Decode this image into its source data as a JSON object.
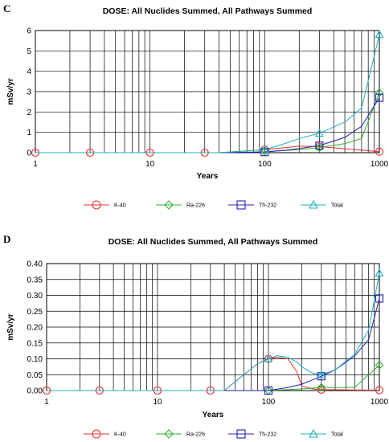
{
  "chart_data": [
    {
      "panel_letter": "C",
      "type": "line",
      "title": "DOSE: All Nuclides Summed, All Pathways Summed",
      "xlabel": "Years",
      "ylabel": "mSv/yr",
      "xscale": "log",
      "xlim": [
        1,
        1000
      ],
      "ylim": [
        0,
        6
      ],
      "x_ticks": [
        1,
        10,
        100,
        1000
      ],
      "x_tick_labels": [
        "1",
        "10",
        "100",
        "1000"
      ],
      "y_ticks": [
        0,
        1,
        2,
        3,
        4,
        5,
        6
      ],
      "y_tick_labels": [
        "0",
        "1",
        "2",
        "3",
        "4",
        "5",
        "6"
      ],
      "grid": true,
      "legend_position": "bottom",
      "series": [
        {
          "name": "K-40",
          "color": "#e03030",
          "marker": "circle",
          "x": [
            1,
            3,
            10,
            30,
            40,
            100,
            150,
            200,
            300,
            1000
          ],
          "y": [
            0,
            0,
            0,
            0,
            0,
            0.15,
            0.25,
            0.32,
            0.3,
            0.05
          ],
          "marker_x": [
            1,
            3,
            10,
            30,
            100,
            300,
            1000
          ]
        },
        {
          "name": "Ra-226",
          "color": "#30b030",
          "marker": "diamond",
          "x": [
            1,
            40,
            100,
            200,
            300,
            500,
            700,
            1000
          ],
          "y": [
            0,
            0,
            0.05,
            0.15,
            0.25,
            0.45,
            0.7,
            2.95
          ],
          "marker_x": [
            100,
            300,
            1000
          ]
        },
        {
          "name": "Th-232",
          "color": "#2020b0",
          "marker": "square",
          "x": [
            1,
            40,
            100,
            150,
            200,
            300,
            500,
            700,
            1000
          ],
          "y": [
            0,
            0,
            0.03,
            0.12,
            0.2,
            0.35,
            0.75,
            1.3,
            2.7
          ],
          "marker_x": [
            100,
            300,
            1000
          ]
        },
        {
          "name": "Total",
          "color": "#20b0c0",
          "marker": "triangle",
          "x": [
            1,
            40,
            100,
            150,
            200,
            300,
            500,
            700,
            1000
          ],
          "y": [
            0,
            0,
            0.15,
            0.45,
            0.7,
            0.95,
            1.5,
            2.2,
            5.8
          ],
          "marker_x": [
            100,
            300,
            1000
          ]
        }
      ]
    },
    {
      "panel_letter": "D",
      "type": "line",
      "title": "DOSE: All Nuclides Summed, All Pathways Summed",
      "xlabel": "Years",
      "ylabel": "mSv/yr",
      "xscale": "log",
      "xlim": [
        1,
        1000
      ],
      "ylim": [
        0,
        0.4
      ],
      "x_ticks": [
        1,
        10,
        100,
        1000
      ],
      "x_tick_labels": [
        "1",
        "10",
        "100",
        "1000"
      ],
      "y_ticks": [
        0,
        0.05,
        0.1,
        0.15,
        0.2,
        0.25,
        0.3,
        0.35,
        0.4
      ],
      "y_tick_labels": [
        "0.00",
        "0.05",
        "0.10",
        "0.15",
        "0.20",
        "0.25",
        "0.30",
        "0.35",
        "0.40"
      ],
      "grid": true,
      "legend_position": "bottom",
      "series": [
        {
          "name": "K-40",
          "color": "#e03030",
          "marker": "circle",
          "x": [
            1,
            3,
            10,
            30,
            40,
            60,
            80,
            100,
            120,
            150,
            180,
            200,
            250,
            300,
            1000
          ],
          "y": [
            0,
            0,
            0,
            0,
            0,
            0.05,
            0.085,
            0.1,
            0.105,
            0.1,
            0.06,
            0.015,
            0.005,
            0.003,
            0.001
          ],
          "marker_x": [
            1,
            3,
            10,
            30,
            100,
            300,
            1000
          ]
        },
        {
          "name": "Ra-226",
          "color": "#30b030",
          "marker": "diamond",
          "x": [
            1,
            100,
            200,
            300,
            400,
            500,
            600,
            800,
            1000
          ],
          "y": [
            0,
            0,
            0.005,
            0.01,
            0.01,
            0.01,
            0.01,
            0.05,
            0.08
          ],
          "marker_x": [
            100,
            300,
            1000
          ]
        },
        {
          "name": "Th-232",
          "color": "#2020b0",
          "marker": "square",
          "x": [
            1,
            100,
            150,
            200,
            300,
            400,
            600,
            800,
            1000
          ],
          "y": [
            0,
            0,
            0.01,
            0.02,
            0.045,
            0.065,
            0.11,
            0.16,
            0.29
          ],
          "marker_x": [
            100,
            300,
            1000
          ]
        },
        {
          "name": "Total",
          "color": "#20b0c0",
          "marker": "triangle",
          "x": [
            1,
            40,
            60,
            80,
            100,
            120,
            150,
            180,
            200,
            250,
            300,
            400,
            600,
            800,
            1000
          ],
          "y": [
            0,
            0,
            0.05,
            0.085,
            0.1,
            0.11,
            0.105,
            0.09,
            0.075,
            0.055,
            0.05,
            0.065,
            0.115,
            0.19,
            0.37
          ],
          "marker_x": [
            100,
            300,
            1000
          ]
        }
      ]
    }
  ]
}
